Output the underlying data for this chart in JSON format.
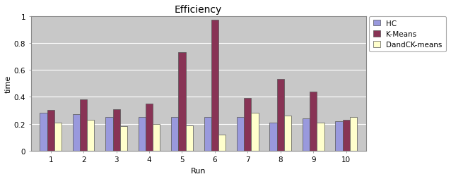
{
  "title": "Efficiency",
  "xlabel": "Run",
  "ylabel": "time",
  "runs": [
    1,
    2,
    3,
    4,
    5,
    6,
    7,
    8,
    9,
    10
  ],
  "hc": [
    0.28,
    0.27,
    0.25,
    0.25,
    0.25,
    0.25,
    0.25,
    0.21,
    0.24,
    0.22
  ],
  "kmeans": [
    0.3,
    0.38,
    0.31,
    0.35,
    0.73,
    0.97,
    0.39,
    0.53,
    0.44,
    0.23
  ],
  "dandc": [
    0.21,
    0.23,
    0.18,
    0.2,
    0.19,
    0.12,
    0.28,
    0.26,
    0.21,
    0.25
  ],
  "hc_color": "#9999dd",
  "kmeans_color": "#883355",
  "dandc_color": "#ffffcc",
  "bar_edge": "#555555",
  "plot_bg_color": "#c8c8c8",
  "fig_bg_color": "#ffffff",
  "ylim": [
    0,
    1.0
  ],
  "yticks": [
    0,
    0.2,
    0.4,
    0.6,
    0.8,
    1
  ],
  "ytick_labels": [
    "0",
    "0.2",
    "0.4",
    "0.6",
    "0.8",
    "1"
  ],
  "legend_labels": [
    "HC",
    "K-Means",
    "DandCK-means"
  ],
  "title_fontsize": 10,
  "axis_label_fontsize": 8,
  "tick_fontsize": 7.5,
  "bar_width": 0.22
}
